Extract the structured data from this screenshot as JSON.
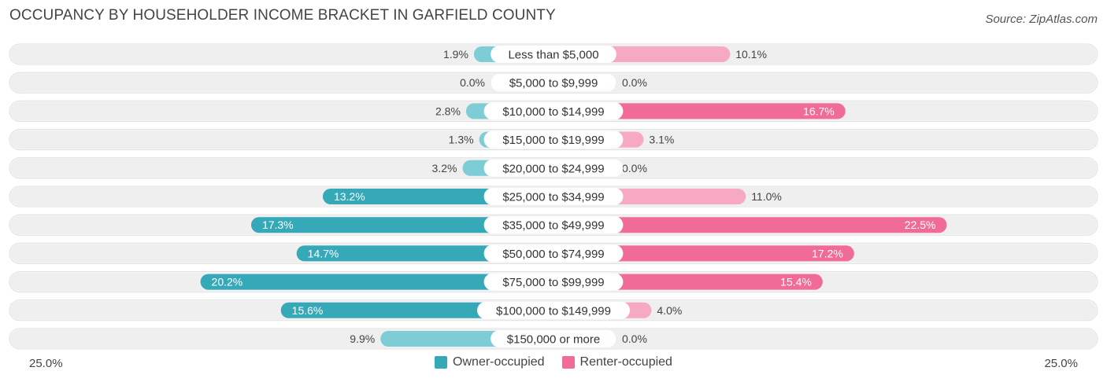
{
  "title": "OCCUPANCY BY HOUSEHOLDER INCOME BRACKET IN GARFIELD COUNTY",
  "source": "Source: ZipAtlas.com",
  "axis": {
    "left_label": "25.0%",
    "right_label": "25.0%"
  },
  "legend": {
    "owner_label": "Owner-occupied",
    "renter_label": "Renter-occupied"
  },
  "colors": {
    "owner_strong": "#35a9b8",
    "owner_light": "#7ecdd6",
    "renter_strong": "#f06b97",
    "renter_light": "#f7a8c2",
    "row_bg": "#efefef"
  },
  "chart_data": {
    "type": "bar",
    "orientation": "horizontal-diverging",
    "xlim": [
      -25,
      25
    ],
    "categories": [
      "Less than $5,000",
      "$5,000 to $9,999",
      "$10,000 to $14,999",
      "$15,000 to $19,999",
      "$20,000 to $24,999",
      "$25,000 to $34,999",
      "$35,000 to $49,999",
      "$50,000 to $74,999",
      "$75,000 to $99,999",
      "$100,000 to $149,999",
      "$150,000 or more"
    ],
    "series": [
      {
        "name": "Owner-occupied",
        "values": [
          1.9,
          0.0,
          2.8,
          1.3,
          3.2,
          13.2,
          17.3,
          14.7,
          20.2,
          15.6,
          9.9
        ],
        "labels": [
          "1.9%",
          "0.0%",
          "2.8%",
          "1.3%",
          "3.2%",
          "13.2%",
          "17.3%",
          "14.7%",
          "20.2%",
          "15.6%",
          "9.9%"
        ]
      },
      {
        "name": "Renter-occupied",
        "values": [
          10.1,
          0.0,
          16.7,
          3.1,
          0.0,
          11.0,
          22.5,
          17.2,
          15.4,
          4.0,
          0.0
        ],
        "labels": [
          "10.1%",
          "0.0%",
          "16.7%",
          "3.1%",
          "0.0%",
          "11.0%",
          "22.5%",
          "17.2%",
          "15.4%",
          "4.0%",
          "0.0%"
        ]
      }
    ]
  }
}
